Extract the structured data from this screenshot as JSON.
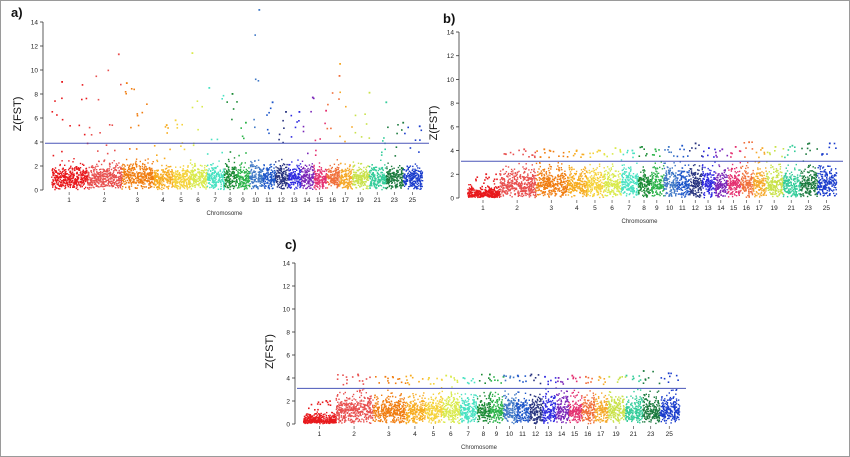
{
  "panels": [
    {
      "letter": "a)"
    },
    {
      "letter": "b)"
    },
    {
      "letter": "c)"
    }
  ],
  "chart_data": [
    {
      "type": "scatter",
      "title": "",
      "xlabel": "Chromosome",
      "ylabel": "Z(FST)",
      "ylim": [
        0,
        14
      ],
      "yticks": [
        0,
        2,
        4,
        6,
        8,
        10,
        12,
        14
      ],
      "threshold": 3.9,
      "chromosome_ticks": [
        "1",
        "2",
        "3",
        "4",
        "5",
        "6",
        "7",
        "8",
        "9",
        "10",
        "11",
        "12",
        "13",
        "14",
        "15",
        "16",
        "17",
        "19",
        "21",
        "23",
        "25"
      ],
      "chromosomes": [
        {
          "name": "1",
          "color": "#e8191d",
          "width": 1.7,
          "base": 1.1,
          "spread": 1.6,
          "max": 9.0
        },
        {
          "name": "2",
          "color": "#e8504f",
          "width": 1.6,
          "base": 1.2,
          "spread": 1.7,
          "max": 11.3
        },
        {
          "name": "3",
          "color": "#f07d10",
          "width": 1.5,
          "base": 1.3,
          "spread": 1.7,
          "max": 8.9
        },
        {
          "name": "4",
          "color": "#f7ab1e",
          "width": 0.9,
          "base": 1.1,
          "spread": 1.5,
          "max": 5.4
        },
        {
          "name": "5",
          "color": "#f5d23b",
          "width": 0.8,
          "base": 1.1,
          "spread": 1.4,
          "max": 5.8
        },
        {
          "name": "6",
          "color": "#d9ea4c",
          "width": 0.8,
          "base": 1.1,
          "spread": 1.6,
          "max": 11.4
        },
        {
          "name": "7",
          "color": "#49e2c2",
          "width": 0.8,
          "base": 1.1,
          "spread": 1.5,
          "max": 8.5
        },
        {
          "name": "8",
          "color": "#1a8a34",
          "width": 0.6,
          "base": 1.2,
          "spread": 1.8,
          "max": 8.0
        },
        {
          "name": "9",
          "color": "#2cb34a",
          "width": 0.6,
          "base": 1.1,
          "spread": 1.6,
          "max": 5.6
        },
        {
          "name": "10",
          "color": "#3f78c6",
          "width": 0.6,
          "base": 1.2,
          "spread": 1.8,
          "max": 15.0
        },
        {
          "name": "11",
          "color": "#1d56c9",
          "width": 0.6,
          "base": 1.1,
          "spread": 1.7,
          "max": 7.3
        },
        {
          "name": "12",
          "color": "#27327e",
          "width": 0.6,
          "base": 1.2,
          "spread": 1.8,
          "max": 6.5
        },
        {
          "name": "13",
          "color": "#2f2ae0",
          "width": 0.6,
          "base": 1.1,
          "spread": 1.7,
          "max": 6.5
        },
        {
          "name": "14",
          "color": "#7a26b8",
          "width": 0.6,
          "base": 1.1,
          "spread": 1.8,
          "max": 7.7
        },
        {
          "name": "15",
          "color": "#e43070",
          "width": 0.6,
          "base": 1.1,
          "spread": 1.5,
          "max": 6.6
        },
        {
          "name": "16",
          "color": "#f06f3a",
          "width": 0.6,
          "base": 1.1,
          "spread": 1.6,
          "max": 9.5
        },
        {
          "name": "17",
          "color": "#f5a92a",
          "width": 0.6,
          "base": 1.1,
          "spread": 1.6,
          "max": 10.5
        },
        {
          "name": "19",
          "color": "#c9e24a",
          "width": 0.8,
          "base": 1.1,
          "spread": 1.5,
          "max": 8.1
        },
        {
          "name": "21",
          "color": "#34cc9a",
          "width": 0.8,
          "base": 1.1,
          "spread": 1.5,
          "max": 7.3
        },
        {
          "name": "23",
          "color": "#1b7a3e",
          "width": 0.8,
          "base": 1.1,
          "spread": 1.5,
          "max": 5.6
        },
        {
          "name": "25",
          "color": "#1a3ccc",
          "width": 0.9,
          "base": 1.1,
          "spread": 1.5,
          "max": 5.3
        }
      ]
    },
    {
      "type": "scatter",
      "title": "",
      "xlabel": "Chromosome",
      "ylabel": "Z(FST)",
      "ylim": [
        0,
        14
      ],
      "yticks": [
        0,
        2,
        4,
        6,
        8,
        10,
        12,
        14
      ],
      "threshold": 3.1,
      "chromosome_ticks": [
        "1",
        "2",
        "3",
        "4",
        "5",
        "6",
        "7",
        "8",
        "9",
        "10",
        "11",
        "12",
        "13",
        "14",
        "15",
        "16",
        "17",
        "19",
        "21",
        "23",
        "25"
      ],
      "chromosomes": [
        {
          "name": "1",
          "color": "#e8191d",
          "width": 1.5,
          "base": 0.2,
          "spread": 1.0,
          "max": 2.0
        },
        {
          "name": "2",
          "color": "#e8504f",
          "width": 1.7,
          "base": 1.2,
          "spread": 2.2,
          "max": 4.1
        },
        {
          "name": "3",
          "color": "#f07d10",
          "width": 1.5,
          "base": 1.2,
          "spread": 2.2,
          "max": 4.1
        },
        {
          "name": "4",
          "color": "#f7ab1e",
          "width": 0.9,
          "base": 1.2,
          "spread": 2.2,
          "max": 4.0
        },
        {
          "name": "5",
          "color": "#f5d23b",
          "width": 0.8,
          "base": 1.2,
          "spread": 2.2,
          "max": 4.0
        },
        {
          "name": "6",
          "color": "#d9ea4c",
          "width": 0.8,
          "base": 1.2,
          "spread": 2.2,
          "max": 4.2
        },
        {
          "name": "7",
          "color": "#49e2c2",
          "width": 0.8,
          "base": 1.2,
          "spread": 2.2,
          "max": 4.0
        },
        {
          "name": "8",
          "color": "#1a8a34",
          "width": 0.6,
          "base": 1.2,
          "spread": 2.2,
          "max": 4.3
        },
        {
          "name": "9",
          "color": "#2cb34a",
          "width": 0.6,
          "base": 1.2,
          "spread": 2.2,
          "max": 4.1
        },
        {
          "name": "10",
          "color": "#3f78c6",
          "width": 0.6,
          "base": 1.2,
          "spread": 2.2,
          "max": 4.3
        },
        {
          "name": "11",
          "color": "#1d56c9",
          "width": 0.6,
          "base": 1.2,
          "spread": 2.2,
          "max": 4.4
        },
        {
          "name": "12",
          "color": "#27327e",
          "width": 0.6,
          "base": 1.2,
          "spread": 2.2,
          "max": 4.6
        },
        {
          "name": "13",
          "color": "#2f2ae0",
          "width": 0.6,
          "base": 1.2,
          "spread": 2.2,
          "max": 4.2
        },
        {
          "name": "14",
          "color": "#7a26b8",
          "width": 0.6,
          "base": 1.2,
          "spread": 2.2,
          "max": 4.1
        },
        {
          "name": "15",
          "color": "#e43070",
          "width": 0.6,
          "base": 1.2,
          "spread": 2.2,
          "max": 4.3
        },
        {
          "name": "16",
          "color": "#f06f3a",
          "width": 0.6,
          "base": 1.2,
          "spread": 2.2,
          "max": 4.7
        },
        {
          "name": "17",
          "color": "#f5a92a",
          "width": 0.6,
          "base": 1.2,
          "spread": 2.2,
          "max": 4.2
        },
        {
          "name": "19",
          "color": "#c9e24a",
          "width": 0.8,
          "base": 1.2,
          "spread": 2.2,
          "max": 4.3
        },
        {
          "name": "21",
          "color": "#34cc9a",
          "width": 0.8,
          "base": 1.2,
          "spread": 2.2,
          "max": 4.4
        },
        {
          "name": "23",
          "color": "#1b7a3e",
          "width": 0.8,
          "base": 1.2,
          "spread": 2.2,
          "max": 4.6
        },
        {
          "name": "25",
          "color": "#1a3ccc",
          "width": 0.9,
          "base": 1.2,
          "spread": 2.2,
          "max": 4.6
        }
      ]
    },
    {
      "type": "scatter",
      "title": "",
      "xlabel": "Chromosome",
      "ylabel": "Z(FST)",
      "ylim": [
        0,
        14
      ],
      "yticks": [
        0,
        2,
        4,
        6,
        8,
        10,
        12,
        14
      ],
      "threshold": 3.1,
      "chromosome_ticks": [
        "1",
        "2",
        "3",
        "4",
        "5",
        "6",
        "7",
        "8",
        "9",
        "10",
        "11",
        "12",
        "13",
        "14",
        "15",
        "16",
        "17",
        "19",
        "21",
        "23",
        "25"
      ],
      "chromosomes": [
        {
          "name": "1",
          "color": "#e8191d",
          "width": 1.5,
          "base": 0.2,
          "spread": 1.0,
          "max": 2.0
        },
        {
          "name": "2",
          "color": "#e8504f",
          "width": 1.7,
          "base": 1.2,
          "spread": 2.2,
          "max": 4.3
        },
        {
          "name": "3",
          "color": "#f07d10",
          "width": 1.5,
          "base": 1.2,
          "spread": 2.2,
          "max": 4.1
        },
        {
          "name": "4",
          "color": "#f7ab1e",
          "width": 0.9,
          "base": 1.2,
          "spread": 2.2,
          "max": 4.2
        },
        {
          "name": "5",
          "color": "#f5d23b",
          "width": 0.8,
          "base": 1.2,
          "spread": 2.2,
          "max": 4.0
        },
        {
          "name": "6",
          "color": "#d9ea4c",
          "width": 0.8,
          "base": 1.2,
          "spread": 2.2,
          "max": 4.2
        },
        {
          "name": "7",
          "color": "#49e2c2",
          "width": 0.8,
          "base": 1.2,
          "spread": 2.2,
          "max": 4.0
        },
        {
          "name": "8",
          "color": "#1a8a34",
          "width": 0.6,
          "base": 1.2,
          "spread": 2.2,
          "max": 4.3
        },
        {
          "name": "9",
          "color": "#2cb34a",
          "width": 0.6,
          "base": 1.2,
          "spread": 2.2,
          "max": 4.1
        },
        {
          "name": "10",
          "color": "#3f78c6",
          "width": 0.6,
          "base": 1.2,
          "spread": 2.2,
          "max": 4.2
        },
        {
          "name": "11",
          "color": "#1d56c9",
          "width": 0.6,
          "base": 1.2,
          "spread": 2.2,
          "max": 4.2
        },
        {
          "name": "12",
          "color": "#27327e",
          "width": 0.6,
          "base": 1.2,
          "spread": 2.2,
          "max": 4.3
        },
        {
          "name": "13",
          "color": "#2f2ae0",
          "width": 0.6,
          "base": 1.2,
          "spread": 2.2,
          "max": 4.1
        },
        {
          "name": "14",
          "color": "#7a26b8",
          "width": 0.6,
          "base": 1.2,
          "spread": 2.2,
          "max": 4.0
        },
        {
          "name": "15",
          "color": "#e43070",
          "width": 0.6,
          "base": 1.2,
          "spread": 2.2,
          "max": 4.2
        },
        {
          "name": "16",
          "color": "#f06f3a",
          "width": 0.6,
          "base": 1.2,
          "spread": 2.2,
          "max": 4.1
        },
        {
          "name": "17",
          "color": "#f5a92a",
          "width": 0.6,
          "base": 1.2,
          "spread": 2.2,
          "max": 4.1
        },
        {
          "name": "19",
          "color": "#c9e24a",
          "width": 0.8,
          "base": 1.2,
          "spread": 2.2,
          "max": 4.1
        },
        {
          "name": "21",
          "color": "#34cc9a",
          "width": 0.8,
          "base": 1.2,
          "spread": 2.2,
          "max": 4.2
        },
        {
          "name": "23",
          "color": "#1b7a3e",
          "width": 0.8,
          "base": 1.2,
          "spread": 2.2,
          "max": 4.6
        },
        {
          "name": "25",
          "color": "#1a3ccc",
          "width": 0.9,
          "base": 1.2,
          "spread": 2.2,
          "max": 4.4
        }
      ]
    }
  ]
}
